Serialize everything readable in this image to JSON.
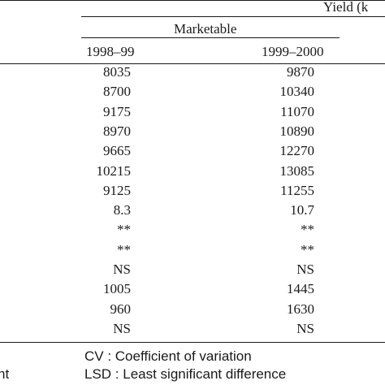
{
  "table": {
    "group_header": "Yield (k",
    "sub_header": "Marketable",
    "columns": [
      "1998–99",
      "1999–2000"
    ],
    "rows": [
      [
        "8035",
        "9870"
      ],
      [
        "8700",
        "10340"
      ],
      [
        "9175",
        "11070"
      ],
      [
        "8970",
        "10890"
      ],
      [
        "9665",
        "12270"
      ],
      [
        "10215",
        "13085"
      ],
      [
        "9125",
        "11255"
      ],
      [
        "8.3",
        "10.7"
      ],
      [
        "**",
        "**"
      ],
      [
        "**",
        "**"
      ],
      [
        "NS",
        "NS"
      ],
      [
        "1005",
        "1445"
      ],
      [
        "960",
        "1630"
      ],
      [
        "NS",
        "NS"
      ]
    ]
  },
  "footnotes": {
    "cv": "CV : Coefficient of variation",
    "lsd": "LSD : Least significant difference",
    "left_fragment": "nt"
  }
}
